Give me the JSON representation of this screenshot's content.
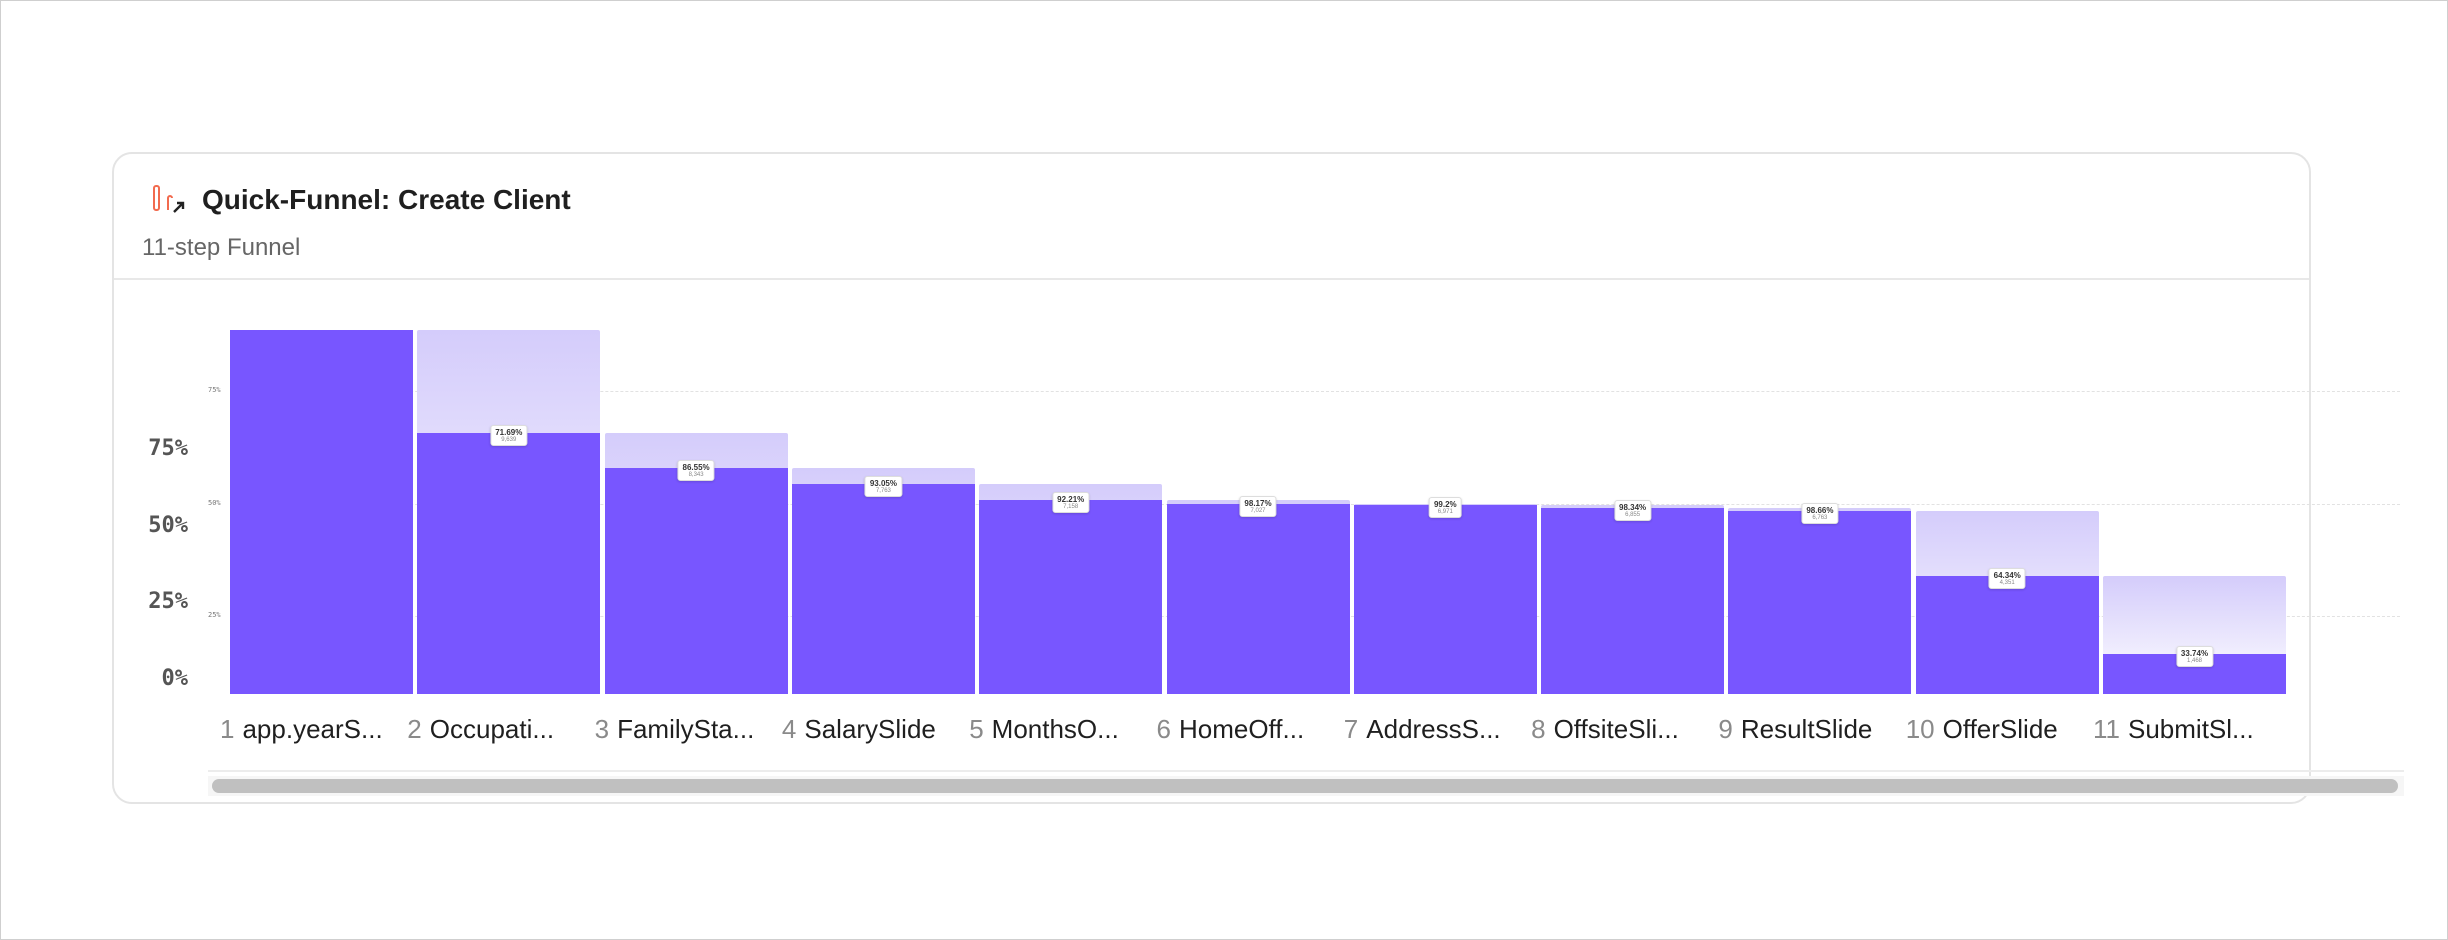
{
  "card": {
    "title": "Quick-Funnel: Create Client",
    "subtitle": "11-step Funnel",
    "icon": "funnel-chart-icon"
  },
  "colors": {
    "bar": "#7856ff",
    "ghost": "#d4ccfb",
    "icon": "#f26b4f"
  },
  "chart_data": {
    "type": "bar",
    "title": "Quick-Funnel: Create Client",
    "y_axis_labels": [
      "75%",
      "50%",
      "25%",
      "0%"
    ],
    "grid_labels": [
      "75%",
      "50%",
      "25%"
    ],
    "grid": true,
    "categories": [
      "app.yearS...",
      "Occupati...",
      "FamilySta...",
      "SalarySlide",
      "MonthsO...",
      "HomeOff...",
      "AddressS...",
      "OffsiteSli...",
      "ResultSlide",
      "OfferSlide",
      "SubmitSl..."
    ],
    "step_numbers": [
      "1",
      "2",
      "3",
      "4",
      "5",
      "6",
      "7",
      "8",
      "9",
      "10",
      "11"
    ],
    "conversion_labels": [
      "",
      "71.69%",
      "86.55%",
      "93.05%",
      "92.21%",
      "98.17%",
      "99.2%",
      "98.34%",
      "98.66%",
      "64.34%",
      "33.74%"
    ],
    "count_labels": [
      "",
      "9,639",
      "8,343",
      "7,763",
      "7,158",
      "7,027",
      "6,971",
      "6,855",
      "6,763",
      "4,351",
      "1,468"
    ],
    "step_conversion": [
      100,
      71.69,
      86.55,
      93.05,
      92.21,
      98.17,
      99.2,
      98.34,
      98.66,
      64.34,
      33.74
    ]
  }
}
